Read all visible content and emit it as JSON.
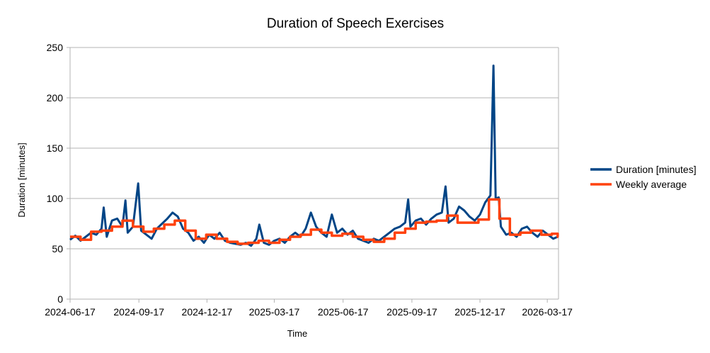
{
  "chart_data": {
    "type": "line",
    "title": "Duration of Speech Exercises",
    "xlabel": "Time",
    "ylabel": "Duration [minutes]",
    "x_range": [
      "2024-06-17",
      "2026-04-01"
    ],
    "ylim": [
      0,
      250
    ],
    "y_ticks": [
      0,
      50,
      100,
      150,
      200,
      250
    ],
    "x_ticks": [
      "2024-06-17",
      "2024-09-17",
      "2024-12-17",
      "2025-03-17",
      "2025-06-17",
      "2025-09-17",
      "2025-12-17",
      "2026-03-17"
    ],
    "grid": "horizontal",
    "legend_position": "right",
    "series": [
      {
        "name": "Duration [minutes]",
        "color": "#004586",
        "points": [
          [
            "2024-06-17",
            59
          ],
          [
            "2024-06-24",
            63
          ],
          [
            "2024-07-01",
            58
          ],
          [
            "2024-07-08",
            62
          ],
          [
            "2024-07-15",
            66
          ],
          [
            "2024-07-22",
            64
          ],
          [
            "2024-07-29",
            70
          ],
          [
            "2024-08-01",
            91
          ],
          [
            "2024-08-05",
            62
          ],
          [
            "2024-08-12",
            78
          ],
          [
            "2024-08-19",
            80
          ],
          [
            "2024-08-26",
            72
          ],
          [
            "2024-08-30",
            98
          ],
          [
            "2024-09-02",
            66
          ],
          [
            "2024-09-09",
            72
          ],
          [
            "2024-09-16",
            115
          ],
          [
            "2024-09-20",
            68
          ],
          [
            "2024-09-27",
            64
          ],
          [
            "2024-10-04",
            60
          ],
          [
            "2024-10-11",
            70
          ],
          [
            "2024-10-18",
            75
          ],
          [
            "2024-10-25",
            80
          ],
          [
            "2024-11-01",
            86
          ],
          [
            "2024-11-08",
            82
          ],
          [
            "2024-11-15",
            70
          ],
          [
            "2024-11-22",
            66
          ],
          [
            "2024-11-29",
            58
          ],
          [
            "2024-12-06",
            62
          ],
          [
            "2024-12-13",
            56
          ],
          [
            "2024-12-20",
            64
          ],
          [
            "2024-12-27",
            60
          ],
          [
            "2025-01-03",
            66
          ],
          [
            "2025-01-10",
            58
          ],
          [
            "2025-01-17",
            56
          ],
          [
            "2025-01-24",
            55
          ],
          [
            "2025-01-31",
            54
          ],
          [
            "2025-02-07",
            56
          ],
          [
            "2025-02-14",
            53
          ],
          [
            "2025-02-21",
            60
          ],
          [
            "2025-02-25",
            74
          ],
          [
            "2025-03-03",
            56
          ],
          [
            "2025-03-10",
            54
          ],
          [
            "2025-03-17",
            58
          ],
          [
            "2025-03-24",
            60
          ],
          [
            "2025-03-31",
            56
          ],
          [
            "2025-04-07",
            62
          ],
          [
            "2025-04-14",
            66
          ],
          [
            "2025-04-21",
            62
          ],
          [
            "2025-04-28",
            70
          ],
          [
            "2025-05-05",
            86
          ],
          [
            "2025-05-12",
            72
          ],
          [
            "2025-05-19",
            66
          ],
          [
            "2025-05-26",
            62
          ],
          [
            "2025-06-02",
            84
          ],
          [
            "2025-06-09",
            66
          ],
          [
            "2025-06-16",
            70
          ],
          [
            "2025-06-23",
            64
          ],
          [
            "2025-06-30",
            68
          ],
          [
            "2025-07-07",
            60
          ],
          [
            "2025-07-14",
            58
          ],
          [
            "2025-07-21",
            56
          ],
          [
            "2025-07-28",
            60
          ],
          [
            "2025-08-04",
            58
          ],
          [
            "2025-08-11",
            62
          ],
          [
            "2025-08-18",
            66
          ],
          [
            "2025-08-25",
            70
          ],
          [
            "2025-09-01",
            72
          ],
          [
            "2025-09-08",
            76
          ],
          [
            "2025-09-12",
            99
          ],
          [
            "2025-09-15",
            72
          ],
          [
            "2025-09-22",
            78
          ],
          [
            "2025-09-29",
            80
          ],
          [
            "2025-10-06",
            74
          ],
          [
            "2025-10-13",
            80
          ],
          [
            "2025-10-20",
            84
          ],
          [
            "2025-10-27",
            86
          ],
          [
            "2025-11-01",
            112
          ],
          [
            "2025-11-05",
            76
          ],
          [
            "2025-11-12",
            80
          ],
          [
            "2025-11-19",
            92
          ],
          [
            "2025-11-26",
            88
          ],
          [
            "2025-12-03",
            82
          ],
          [
            "2025-12-10",
            78
          ],
          [
            "2025-12-17",
            84
          ],
          [
            "2025-12-24",
            96
          ],
          [
            "2025-12-31",
            103
          ],
          [
            "2026-01-04",
            232
          ],
          [
            "2026-01-07",
            100
          ],
          [
            "2026-01-11",
            101
          ],
          [
            "2026-01-14",
            72
          ],
          [
            "2026-01-21",
            64
          ],
          [
            "2026-01-28",
            66
          ],
          [
            "2026-02-04",
            62
          ],
          [
            "2026-02-11",
            70
          ],
          [
            "2026-02-18",
            72
          ],
          [
            "2026-02-25",
            66
          ],
          [
            "2026-03-04",
            62
          ],
          [
            "2026-03-11",
            68
          ],
          [
            "2026-03-18",
            64
          ],
          [
            "2026-03-25",
            60
          ],
          [
            "2026-03-31",
            62
          ]
        ]
      },
      {
        "name": "Weekly average",
        "color": "#ff420e",
        "points": [
          [
            "2024-06-17",
            62
          ],
          [
            "2024-07-01",
            59
          ],
          [
            "2024-07-15",
            67
          ],
          [
            "2024-07-29",
            68
          ],
          [
            "2024-08-12",
            72
          ],
          [
            "2024-08-26",
            78
          ],
          [
            "2024-09-09",
            72
          ],
          [
            "2024-09-23",
            67
          ],
          [
            "2024-10-07",
            70
          ],
          [
            "2024-10-21",
            74
          ],
          [
            "2024-11-04",
            78
          ],
          [
            "2024-11-18",
            68
          ],
          [
            "2024-12-02",
            60
          ],
          [
            "2024-12-16",
            64
          ],
          [
            "2024-12-30",
            60
          ],
          [
            "2025-01-13",
            57
          ],
          [
            "2025-01-27",
            55
          ],
          [
            "2025-02-10",
            56
          ],
          [
            "2025-02-24",
            58
          ],
          [
            "2025-03-10",
            56
          ],
          [
            "2025-03-24",
            59
          ],
          [
            "2025-04-07",
            62
          ],
          [
            "2025-04-21",
            64
          ],
          [
            "2025-05-05",
            69
          ],
          [
            "2025-05-19",
            66
          ],
          [
            "2025-06-02",
            63
          ],
          [
            "2025-06-16",
            65
          ],
          [
            "2025-06-30",
            62
          ],
          [
            "2025-07-14",
            59
          ],
          [
            "2025-07-28",
            57
          ],
          [
            "2025-08-11",
            60
          ],
          [
            "2025-08-25",
            66
          ],
          [
            "2025-09-08",
            70
          ],
          [
            "2025-09-22",
            76
          ],
          [
            "2025-10-06",
            77
          ],
          [
            "2025-10-20",
            78
          ],
          [
            "2025-11-03",
            83
          ],
          [
            "2025-11-17",
            76
          ],
          [
            "2025-12-01",
            76
          ],
          [
            "2025-12-15",
            79
          ],
          [
            "2025-12-29",
            99
          ],
          [
            "2026-01-12",
            80
          ],
          [
            "2026-01-26",
            64
          ],
          [
            "2026-02-09",
            66
          ],
          [
            "2026-02-23",
            68
          ],
          [
            "2026-03-09",
            64
          ],
          [
            "2026-03-23",
            65
          ],
          [
            "2026-03-31",
            62
          ]
        ]
      }
    ]
  }
}
